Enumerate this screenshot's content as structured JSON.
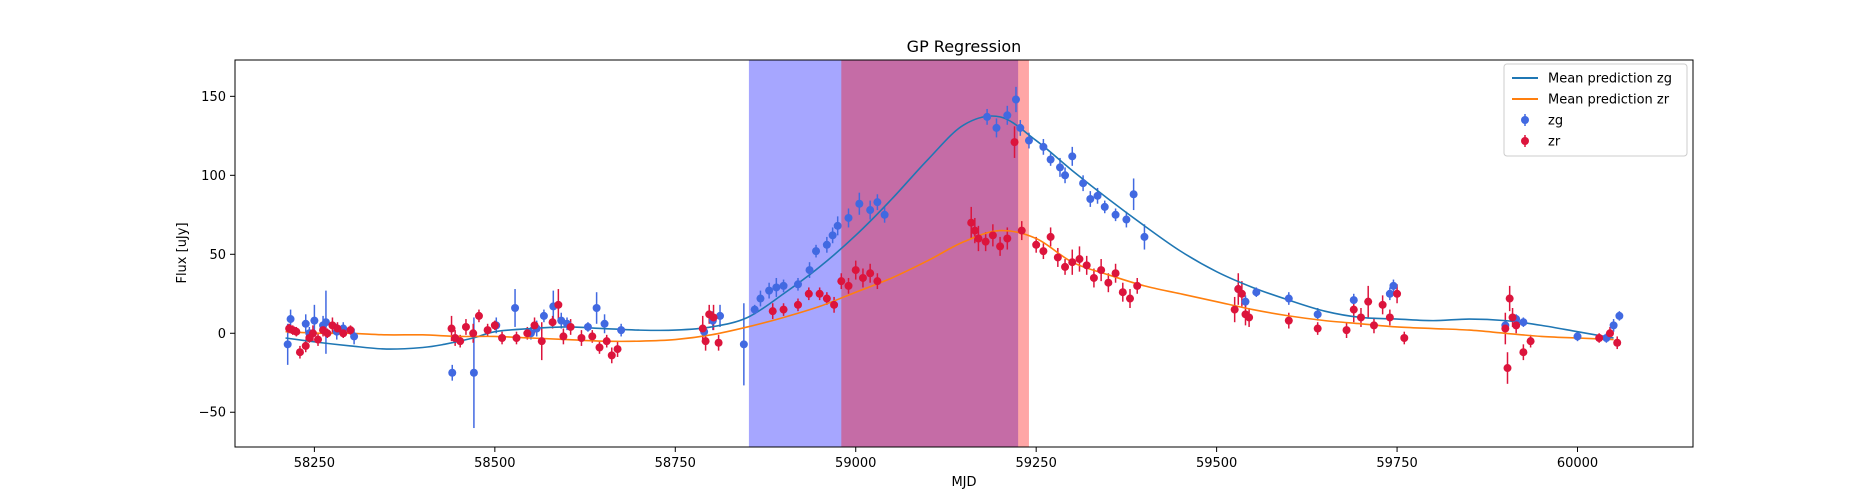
{
  "chart_data": {
    "type": "scatter",
    "title": "GP Regression",
    "xlabel": "MJD",
    "ylabel": "Flux [uJy]",
    "xlim": [
      58140,
      60160
    ],
    "ylim": [
      -72,
      173
    ],
    "xticks": [
      58250,
      58500,
      58750,
      59000,
      59250,
      59500,
      59750,
      60000
    ],
    "yticks": [
      -50,
      0,
      50,
      100,
      150
    ],
    "grid": false,
    "legend_position": "top-right",
    "legend": [
      {
        "label": "Mean prediction zg",
        "kind": "line",
        "color": "#1f77b4"
      },
      {
        "label": "Mean prediction zr",
        "kind": "line",
        "color": "#ff7f0e"
      },
      {
        "label": "zg",
        "kind": "marker",
        "color": "#4169e1"
      },
      {
        "label": "zr",
        "kind": "marker",
        "color": "#dc143c"
      }
    ],
    "spans": [
      {
        "from": 58852,
        "to": 59225,
        "color": "#0000ff",
        "opacity": 0.35
      },
      {
        "from": 58980,
        "to": 59240,
        "color": "#ff0000",
        "opacity": 0.35
      }
    ],
    "series": [
      {
        "name": "Mean prediction zg",
        "kind": "line",
        "color": "#1f77b4",
        "x": [
          58210,
          58260,
          58300,
          58350,
          58400,
          58430,
          58470,
          58500,
          58550,
          58600,
          58650,
          58700,
          58750,
          58800,
          58850,
          58900,
          58950,
          59000,
          59050,
          59100,
          59150,
          59200,
          59250,
          59300,
          59350,
          59400,
          59450,
          59500,
          59550,
          59600,
          59650,
          59700,
          59750,
          59800,
          59850,
          59900,
          59950,
          60000,
          60050
        ],
        "y": [
          -3,
          -6,
          -8,
          -10,
          -9,
          -7,
          -3,
          1,
          3,
          4,
          3,
          2,
          2,
          4,
          10,
          25,
          42,
          62,
          85,
          110,
          132,
          137,
          122,
          103,
          85,
          68,
          52,
          39,
          29,
          21,
          14,
          10,
          9,
          8,
          9,
          8,
          5,
          1,
          -3
        ]
      },
      {
        "name": "Mean prediction zr",
        "kind": "line",
        "color": "#ff7f0e",
        "x": [
          58210,
          58260,
          58300,
          58350,
          58400,
          58450,
          58500,
          58550,
          58600,
          58650,
          58700,
          58750,
          58800,
          58850,
          58900,
          58950,
          59000,
          59050,
          59100,
          59150,
          59200,
          59250,
          59300,
          59350,
          59400,
          59450,
          59500,
          59550,
          59600,
          59650,
          59700,
          59750,
          59800,
          59850,
          59900,
          59950,
          60000,
          60050
        ],
        "y": [
          1,
          0,
          0,
          -1,
          -1,
          -2,
          -2,
          -3,
          -4,
          -5,
          -5,
          -4,
          -1,
          4,
          10,
          17,
          26,
          35,
          46,
          58,
          65,
          60,
          45,
          37,
          30,
          25,
          20,
          15,
          11,
          8,
          6,
          4,
          3,
          2,
          0,
          -2,
          -3,
          -4
        ]
      },
      {
        "name": "zg",
        "kind": "errorbar",
        "color": "#4169e1",
        "x": [
          58213,
          58217,
          58238,
          58243,
          58250,
          58262,
          58266,
          58281,
          58290,
          58305,
          58441,
          58471,
          58502,
          58528,
          58550,
          58558,
          58568,
          58581,
          58592,
          58600,
          58629,
          58641,
          58652,
          58675,
          58790,
          58802,
          58812,
          58845,
          58860,
          58868,
          58880,
          58890,
          58900,
          58920,
          58936,
          58945,
          58960,
          58968,
          58975,
          58990,
          59005,
          59020,
          59030,
          59040,
          59182,
          59195,
          59210,
          59222,
          59228,
          59240,
          59260,
          59270,
          59283,
          59290,
          59300,
          59315,
          59325,
          59335,
          59345,
          59360,
          59375,
          59385,
          59400,
          59530,
          59540,
          59555,
          59600,
          59640,
          59690,
          59740,
          59745,
          59900,
          59915,
          59925,
          60000,
          60040,
          60050,
          60058
        ],
        "y": [
          -7,
          9,
          6,
          0,
          8,
          5,
          7,
          1,
          3,
          -2,
          -25,
          -25,
          5,
          16,
          0,
          3,
          11,
          17,
          8,
          6,
          4,
          16,
          6,
          2,
          1,
          8,
          11,
          -7,
          15,
          22,
          27,
          29,
          30,
          31,
          40,
          52,
          56,
          62,
          68,
          73,
          82,
          78,
          83,
          75,
          137,
          130,
          138,
          148,
          130,
          122,
          118,
          110,
          105,
          100,
          112,
          95,
          85,
          87,
          80,
          75,
          72,
          88,
          61,
          28,
          20,
          26,
          22,
          12,
          21,
          25,
          30,
          5,
          9,
          7,
          -2,
          -3,
          5,
          11
        ],
        "err": [
          13,
          6,
          6,
          4,
          10,
          6,
          20,
          5,
          4,
          5,
          5,
          35,
          5,
          12,
          4,
          5,
          4,
          10,
          5,
          4,
          3,
          10,
          6,
          4,
          3,
          6,
          7,
          26,
          3,
          5,
          5,
          6,
          4,
          4,
          5,
          4,
          5,
          5,
          6,
          6,
          7,
          6,
          5,
          5,
          5,
          6,
          6,
          8,
          5,
          5,
          5,
          4,
          6,
          5,
          6,
          5,
          5,
          5,
          4,
          4,
          5,
          10,
          8,
          7,
          4,
          3,
          4,
          4,
          4,
          4,
          4,
          3,
          3,
          3,
          3,
          3,
          4,
          3
        ]
      },
      {
        "name": "zr",
        "kind": "errorbar",
        "color": "#dc143c",
        "x": [
          58215,
          58220,
          58225,
          58230,
          58238,
          58243,
          58248,
          58255,
          58262,
          58268,
          58275,
          58282,
          58290,
          58300,
          58440,
          58445,
          58452,
          58460,
          58470,
          58478,
          58490,
          58500,
          58510,
          58530,
          58545,
          58555,
          58565,
          58580,
          58588,
          58595,
          58605,
          58620,
          58635,
          58645,
          58655,
          58662,
          58670,
          58788,
          58792,
          58797,
          58803,
          58810,
          58885,
          58900,
          58920,
          58935,
          58950,
          58960,
          58970,
          58980,
          58990,
          59000,
          59010,
          59020,
          59030,
          59160,
          59165,
          59170,
          59180,
          59190,
          59200,
          59210,
          59220,
          59230,
          59250,
          59260,
          59270,
          59280,
          59290,
          59300,
          59310,
          59320,
          59330,
          59340,
          59350,
          59360,
          59370,
          59380,
          59390,
          59525,
          59530,
          59535,
          59540,
          59545,
          59600,
          59640,
          59680,
          59690,
          59700,
          59710,
          59718,
          59730,
          59740,
          59750,
          59760,
          59900,
          59903,
          59906,
          59910,
          59915,
          59925,
          59935,
          60030,
          60045,
          60055
        ],
        "y": [
          3,
          2,
          1,
          -12,
          -8,
          -3,
          0,
          -4,
          2,
          0,
          5,
          3,
          0,
          2,
          3,
          -3,
          -5,
          4,
          0,
          11,
          2,
          5,
          -3,
          -3,
          0,
          5,
          -5,
          7,
          18,
          -2,
          4,
          -3,
          -2,
          -9,
          -5,
          -14,
          -10,
          3,
          -5,
          12,
          10,
          -6,
          14,
          15,
          18,
          25,
          25,
          22,
          18,
          33,
          30,
          40,
          35,
          38,
          33,
          70,
          65,
          60,
          58,
          62,
          55,
          60,
          121,
          65,
          56,
          52,
          61,
          48,
          42,
          45,
          47,
          43,
          35,
          40,
          32,
          38,
          26,
          22,
          30,
          15,
          28,
          25,
          12,
          10,
          8,
          3,
          2,
          15,
          10,
          20,
          5,
          18,
          10,
          25,
          -3,
          3,
          -22,
          22,
          10,
          5,
          -12,
          -5,
          -3,
          0,
          -6
        ],
        "err": [
          3,
          3,
          3,
          4,
          4,
          3,
          5,
          4,
          4,
          3,
          5,
          4,
          3,
          3,
          8,
          5,
          4,
          5,
          6,
          4,
          4,
          3,
          4,
          4,
          4,
          5,
          12,
          4,
          10,
          5,
          5,
          5,
          4,
          4,
          4,
          5,
          5,
          8,
          6,
          6,
          8,
          5,
          5,
          4,
          4,
          4,
          4,
          4,
          5,
          5,
          5,
          6,
          6,
          6,
          5,
          10,
          8,
          8,
          6,
          7,
          6,
          7,
          10,
          6,
          5,
          5,
          6,
          6,
          5,
          8,
          8,
          6,
          6,
          7,
          6,
          6,
          6,
          6,
          5,
          8,
          10,
          8,
          7,
          6,
          5,
          4,
          5,
          8,
          6,
          10,
          5,
          6,
          5,
          6,
          4,
          10,
          10,
          8,
          6,
          5,
          5,
          4,
          3,
          4,
          4
        ]
      }
    ]
  }
}
